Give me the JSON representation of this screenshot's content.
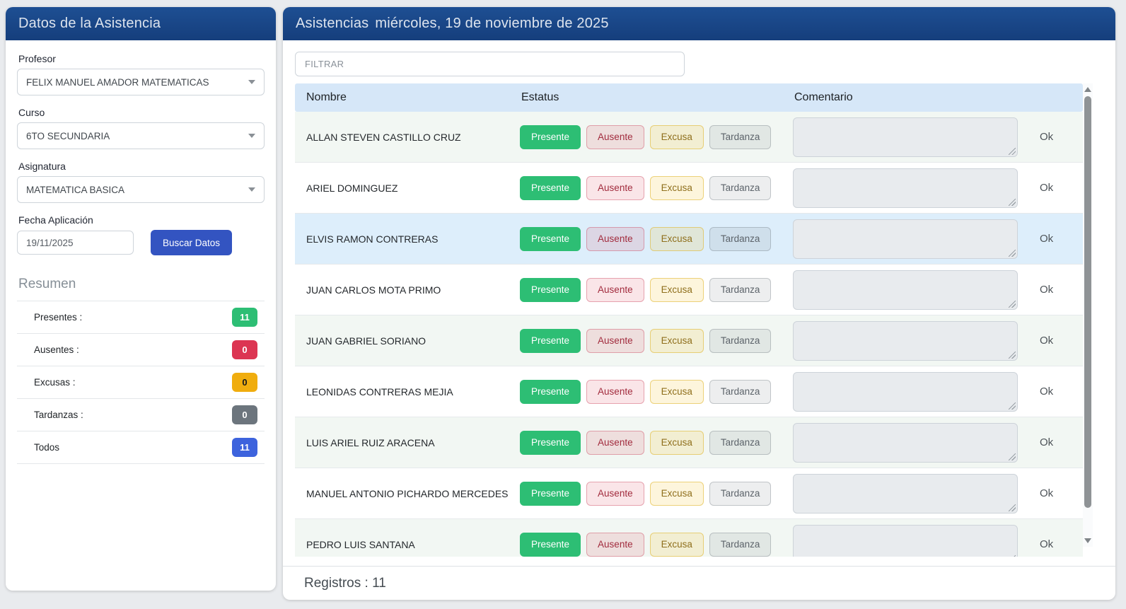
{
  "colors": {
    "header_blue": "#1a4788",
    "primary_button_blue": "#3354c1",
    "presente_green": "#2dbe74",
    "ausente_red": "#dc3552",
    "excusa_yellow": "#f0ad0e",
    "tardanza_gray": "#6c757d",
    "todos_blue": "#3d63dd",
    "table_header_blue": "#d6e7f8",
    "selected_row_blue": "#ddeefb",
    "striped_row_tint": "#f2f7f3"
  },
  "sidebar": {
    "title": "Datos de la Asistencia",
    "profesor_label": "Profesor",
    "profesor_value": "FELIX MANUEL AMADOR MATEMATICAS",
    "curso_label": "Curso",
    "curso_value": "6TO SECUNDARIA",
    "asignatura_label": "Asignatura",
    "asignatura_value": "MATEMATICA BASICA",
    "fecha_label": "Fecha Aplicación",
    "fecha_value": "19/11/2025",
    "buscar_button_label": "Buscar Datos",
    "resumen_title": "Resumen",
    "summary": [
      {
        "label": "Presentes :",
        "value": "11",
        "variant": "green"
      },
      {
        "label": "Ausentes :",
        "value": "0",
        "variant": "red"
      },
      {
        "label": "Excusas :",
        "value": "0",
        "variant": "yellow"
      },
      {
        "label": "Tardanzas :",
        "value": "0",
        "variant": "gray"
      },
      {
        "label": "Todos",
        "value": "11",
        "variant": "blue"
      }
    ]
  },
  "main": {
    "title_prefix": "Asistencias",
    "title_date": "miércoles, 19 de noviembre de 2025",
    "filter_placeholder": "FILTRAR",
    "columns": [
      "Nombre",
      "Estatus",
      "Comentario"
    ],
    "status_labels": [
      "Presente",
      "Ausente",
      "Excusa",
      "Tardanza"
    ],
    "ok_label": "Ok",
    "students": [
      {
        "name": "ALLAN STEVEN CASTILLO CRUZ",
        "selected": false
      },
      {
        "name": "ARIEL DOMINGUEZ",
        "selected": false
      },
      {
        "name": "ELVIS RAMON CONTRERAS",
        "selected": true
      },
      {
        "name": "JUAN CARLOS MOTA PRIMO",
        "selected": false
      },
      {
        "name": "JUAN GABRIEL SORIANO",
        "selected": false
      },
      {
        "name": "LEONIDAS CONTRERAS MEJIA",
        "selected": false
      },
      {
        "name": "LUIS ARIEL RUIZ ARACENA",
        "selected": false
      },
      {
        "name": "MANUEL ANTONIO PICHARDO MERCEDES",
        "selected": false
      },
      {
        "name": "PEDRO LUIS SANTANA",
        "selected": false
      }
    ],
    "records_label": "Registros : 11"
  }
}
